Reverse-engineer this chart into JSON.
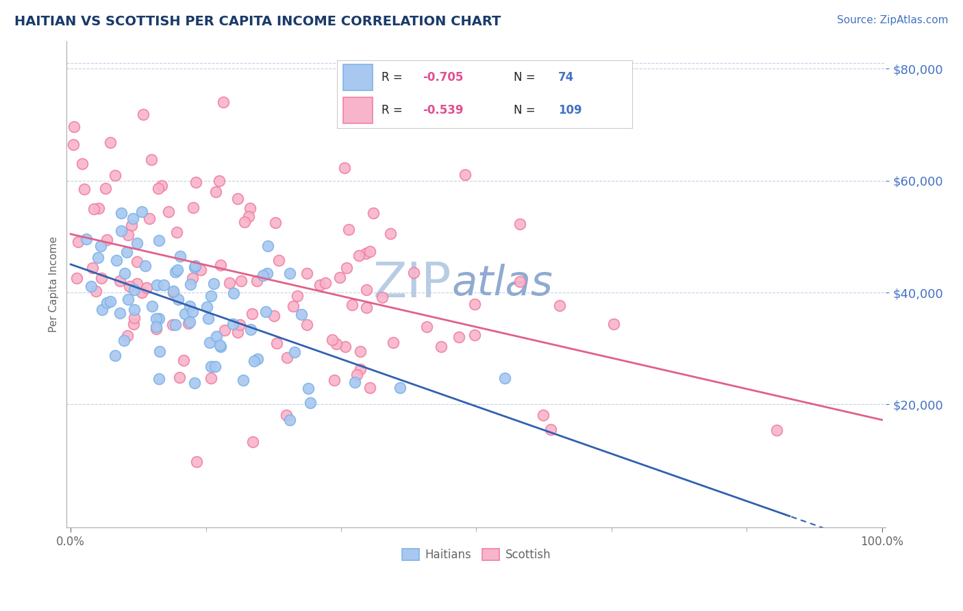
{
  "title": "HAITIAN VS SCOTTISH PER CAPITA INCOME CORRELATION CHART",
  "source_text": "Source: ZipAtlas.com",
  "ylabel": "Per Capita Income",
  "y_ticks": [
    20000,
    40000,
    60000,
    80000
  ],
  "y_tick_labels": [
    "$20,000",
    "$40,000",
    "$60,000",
    "$80,000"
  ],
  "haitian_color": "#a8c8f0",
  "haitian_edge_color": "#7eb3e8",
  "scottish_color": "#f8b4cb",
  "scottish_edge_color": "#f080a0",
  "haitian_R": -0.705,
  "haitian_N": 74,
  "scottish_R": -0.539,
  "scottish_N": 109,
  "haitian_line_color": "#3060b0",
  "scottish_line_color": "#e06088",
  "title_color": "#1a3a6a",
  "axis_label_color": "#666666",
  "tick_label_color": "#4472c4",
  "legend_neg_color": "#e05090",
  "background_color": "#ffffff",
  "grid_color": "#c0d0e8",
  "watermark_zip_color": "#b8cce4",
  "watermark_atlas_color": "#90aad0",
  "seed": 42
}
